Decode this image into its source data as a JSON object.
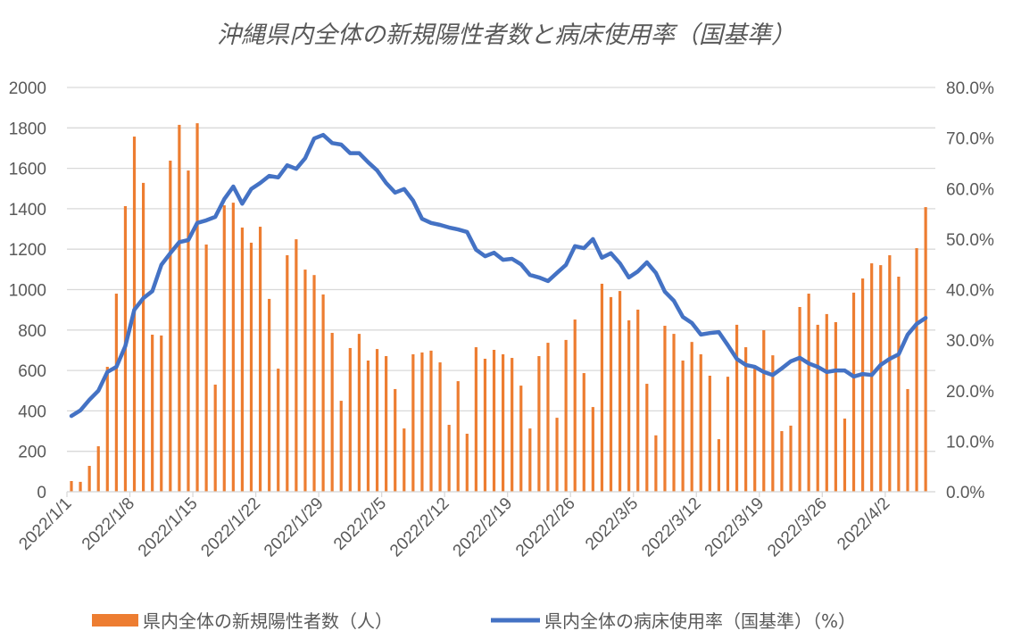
{
  "chart_data": {
    "type": "bar+line",
    "title": "沖縄県内全体の新規陽性者数と病床使用率（国基準）",
    "x_start": "2022/1/1",
    "x_end": "2022/4/5",
    "x_tick_labels": [
      "2022/1/1",
      "2022/1/8",
      "2022/1/15",
      "2022/1/22",
      "2022/1/29",
      "2022/2/5",
      "2022/2/12",
      "2022/2/19",
      "2022/2/26",
      "2022/3/5",
      "2022/3/12",
      "2022/3/19",
      "2022/3/26",
      "2022/4/2"
    ],
    "y_left": {
      "min": 0,
      "max": 2000,
      "step": 200,
      "tick_labels": [
        "0",
        "200",
        "400",
        "600",
        "800",
        "1000",
        "1200",
        "1400",
        "1600",
        "1800",
        "2000"
      ]
    },
    "y_right": {
      "min": 0,
      "max": 80,
      "step": 10,
      "tick_labels": [
        "0.0%",
        "10.0%",
        "20.0%",
        "30.0%",
        "40.0%",
        "50.0%",
        "60.0%",
        "70.0%",
        "80.0%"
      ]
    },
    "grid": true,
    "legend_position": "bottom",
    "series": [
      {
        "name": "県内全体の新規陽性者数（人）",
        "type": "bar",
        "axis": "left",
        "color": "#ED7D31",
        "values": [
          53,
          49,
          128,
          225,
          618,
          980,
          1413,
          1757,
          1528,
          777,
          773,
          1638,
          1815,
          1589,
          1823,
          1223,
          530,
          1417,
          1430,
          1307,
          1232,
          1311,
          954,
          609,
          1170,
          1249,
          1099,
          1072,
          976,
          786,
          450,
          711,
          781,
          649,
          706,
          671,
          508,
          313,
          680,
          689,
          698,
          640,
          331,
          547,
          287,
          715,
          658,
          702,
          680,
          662,
          525,
          313,
          671,
          737,
          366,
          751,
          852,
          587,
          419,
          1029,
          963,
          993,
          848,
          901,
          534,
          279,
          821,
          781,
          649,
          741,
          680,
          574,
          260,
          569,
          826,
          715,
          609,
          799,
          675,
          300,
          327,
          914,
          980,
          826,
          879,
          839,
          362,
          985,
          1055,
          1130,
          1121,
          1170,
          1064,
          508,
          1205,
          1408
        ]
      },
      {
        "name": "県内全体の病床使用率（国基準）（%）",
        "type": "line",
        "axis": "right",
        "color": "#4472C4",
        "values": [
          15.0,
          16.1,
          18.2,
          20.0,
          23.7,
          24.7,
          28.8,
          36.0,
          38.3,
          39.7,
          44.9,
          47.2,
          49.4,
          49.8,
          53.2,
          53.7,
          54.4,
          57.9,
          60.4,
          57.0,
          59.9,
          61.1,
          62.5,
          62.2,
          64.6,
          63.9,
          66.0,
          69.9,
          70.6,
          69.0,
          68.7,
          67.0,
          67.0,
          65.2,
          63.6,
          61.1,
          59.2,
          59.9,
          57.6,
          54.0,
          53.2,
          52.8,
          52.3,
          51.9,
          51.4,
          47.9,
          46.6,
          47.3,
          45.9,
          46.1,
          45.0,
          42.9,
          42.4,
          41.7,
          43.3,
          44.9,
          48.6,
          48.2,
          50.0,
          46.3,
          47.2,
          45.2,
          42.4,
          43.6,
          45.4,
          43.3,
          39.6,
          37.8,
          34.6,
          33.4,
          31.1,
          31.4,
          31.6,
          29.0,
          26.3,
          25.1,
          24.7,
          23.7,
          23.1,
          24.4,
          25.8,
          26.5,
          25.4,
          24.7,
          23.7,
          24.0,
          24.0,
          22.8,
          23.3,
          23.1,
          25.1,
          26.3,
          27.2,
          31.1,
          33.2,
          34.4
        ]
      }
    ]
  }
}
